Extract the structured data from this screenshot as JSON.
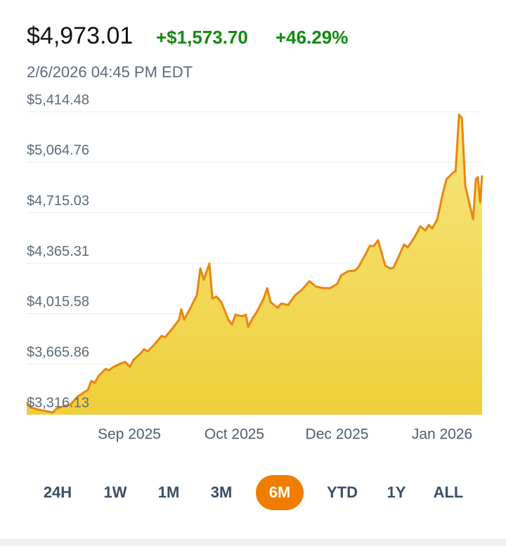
{
  "header": {
    "price": "$4,973.01",
    "change": "+$1,573.70",
    "change_percent": "+46.29%",
    "timestamp": "2/6/2026 04:45 PM EDT"
  },
  "chart_data": {
    "type": "area",
    "color": "#e8870e",
    "fill": "#f3d850",
    "x": [
      0,
      1.7,
      4.8,
      7.6,
      10.4,
      11.8,
      14.6,
      17.4,
      20.2,
      23.0,
      24.4,
      25.8,
      27.2,
      28.7,
      31.5,
      32.9,
      34.3,
      37.1,
      39.3,
      41.3,
      42.7,
      45.5,
      46.9,
      48.3,
      51.1,
      53.9,
      55.3,
      58.1,
      60.9,
      61.8,
      62.9,
      65.2,
      68.0,
      69.4,
      70.8,
      73.0,
      74.2,
      75.8,
      77.8,
      80.6,
      82.0,
      83.4,
      86.2,
      87.6,
      88.5,
      90.4,
      91.8,
      94.7,
      96.1,
      97.5,
      100.3,
      101.7,
      104.5,
      107.3,
      110.1,
      111.8,
      112.9,
      115.7,
      118.5,
      121.3,
      124.1,
      125.6,
      128.4,
      131.2,
      132.6,
      135.4,
      137.1,
      138.8,
      140.4,
      143.3,
      145.2,
      146.6,
      150.8,
      152.3,
      155.1,
      157.3,
      159.3,
      160.7,
      162.1,
      164.1,
      166.3,
      167.8,
      170.6,
      171.4,
      172.8,
      173.9,
      175.3,
      178.4,
      179.5,
      180.3,
      181.2,
      182.0
    ],
    "values": [
      3403.8,
      3364.8,
      3350.2,
      3340.5,
      3330.7,
      3355.1,
      3374.6,
      3384.3,
      3437.9,
      3471.9,
      3486.5,
      3549.8,
      3535.2,
      3583.9,
      3632.6,
      3622.9,
      3642.4,
      3666.7,
      3681.3,
      3647.2,
      3695.9,
      3739.7,
      3769.0,
      3754.3,
      3803.0,
      3861.4,
      3851.7,
      3910.1,
      3973.4,
      4046.5,
      3973.4,
      4046.5,
      4143.9,
      4328.9,
      4251.0,
      4363.0,
      4119.5,
      4134.1,
      4095.2,
      3973.4,
      3939.4,
      4007.5,
      3997.8,
      4007.5,
      3924.8,
      3988.0,
      4022.1,
      4119.5,
      4192.5,
      4095.2,
      4056.2,
      4085.4,
      4075.7,
      4143.9,
      4182.8,
      4216.9,
      4241.3,
      4202.3,
      4192.5,
      4192.5,
      4221.7,
      4280.2,
      4309.4,
      4314.3,
      4338.6,
      4426.3,
      4484.7,
      4484.7,
      4523.6,
      4348.3,
      4328.9,
      4333.7,
      4494.4,
      4474.9,
      4548.0,
      4621.0,
      4591.8,
      4630.8,
      4606.4,
      4669.7,
      4849.8,
      4947.2,
      4995.9,
      5000.8,
      5395.2,
      5370.8,
      4898.5,
      4669.7,
      4947.2,
      4961.8,
      4786.5,
      4973.01
    ],
    "xlim": [
      0,
      182
    ],
    "xticks": [
      {
        "value": 41,
        "label": "Sep 2025"
      },
      {
        "value": 83,
        "label": "Oct 2025"
      },
      {
        "value": 124,
        "label": "Dec 2025"
      },
      {
        "value": 166,
        "label": "Jan 2026"
      }
    ],
    "ylim": [
      3316.13,
      5414.48
    ],
    "yticks": [
      {
        "value": 3316.13,
        "label": "$3,316.13"
      },
      {
        "value": 3665.86,
        "label": "$3,665.86"
      },
      {
        "value": 4015.58,
        "label": "$4,015.58"
      },
      {
        "value": 4365.31,
        "label": "$4,365.31"
      },
      {
        "value": 4715.03,
        "label": "$4,715.03"
      },
      {
        "value": 5064.76,
        "label": "$5,064.76"
      },
      {
        "value": 5414.48,
        "label": "$5,414.48"
      }
    ],
    "grid": true
  },
  "ranges": {
    "options": [
      "24H",
      "1W",
      "1M",
      "3M",
      "6M",
      "YTD",
      "1Y",
      "ALL"
    ],
    "active": 4
  }
}
